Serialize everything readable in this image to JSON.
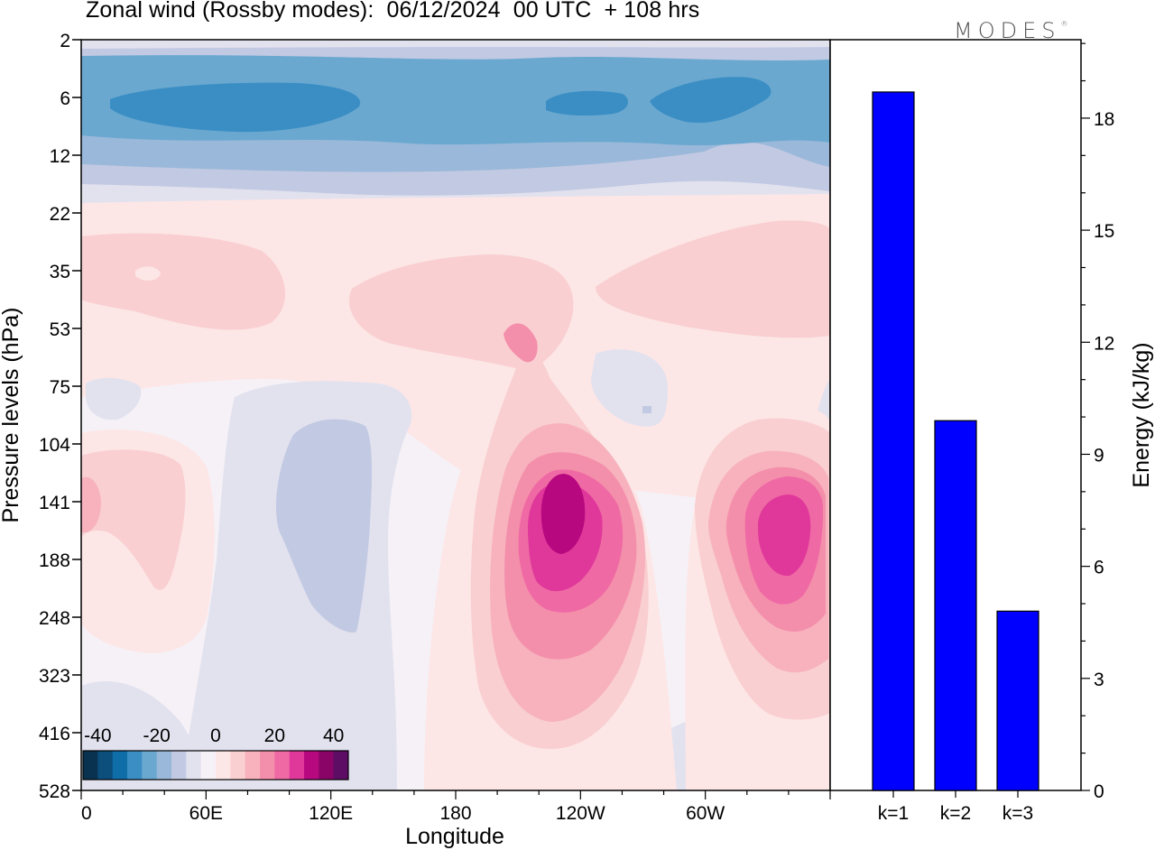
{
  "title": "Zonal wind (Rossby modes):  06/12/2024  00 UTC  + 108 hrs",
  "logo": "MODES",
  "logo_mark": "®",
  "colors": {
    "frame": "#000000",
    "bar_fill": "#0000ff",
    "palette": [
      "#08324f",
      "#0c4e7c",
      "#0f6ea8",
      "#3b8ec4",
      "#6aa8d0",
      "#9ab8d9",
      "#c2c9e2",
      "#e2e2ef",
      "#f6f1f6",
      "#ffffff",
      "#fde6e6",
      "#f9cfd1",
      "#f7b2bd",
      "#f48fab",
      "#ef6aa4",
      "#e0389a",
      "#b8087f",
      "#8a0468",
      "#5d0d63"
    ]
  },
  "chart_data": [
    {
      "type": "heatmap",
      "name": "zonal-wind-section",
      "xlabel": "Longitude",
      "ylabel": "Pressure levels (hPa)",
      "x_ticks": [
        "0",
        "60E",
        "120E",
        "180",
        "120W",
        "60W"
      ],
      "x_range_deg": [
        0,
        360
      ],
      "y_ticks": [
        "2",
        "6",
        "12",
        "22",
        "35",
        "53",
        "75",
        "104",
        "141",
        "188",
        "248",
        "323",
        "416",
        "528"
      ],
      "colorbar": {
        "tick_labels": [
          "-40",
          "-20",
          "0",
          "20",
          "40"
        ],
        "range": [
          -45,
          45
        ],
        "step": 5
      },
      "features": [
        {
          "type": "easterly-band",
          "level": "2-22 hPa",
          "core": "6 hPa",
          "min_value": -25
        },
        {
          "type": "westerly-core",
          "lon": "~115W",
          "level": "141 hPa",
          "max_value": 35
        },
        {
          "type": "westerly-core",
          "lon": "~35W",
          "level": "141-188 hPa",
          "max_value": 30
        },
        {
          "type": "easterly-region",
          "lon": "~60E-120E",
          "level": "104-248 hPa",
          "min_value": -10
        }
      ]
    },
    {
      "type": "bar",
      "name": "rossby-energy",
      "categories": [
        "k=1",
        "k=2",
        "k=3"
      ],
      "values": [
        18.7,
        9.9,
        4.8
      ],
      "ylabel": "Energy (kJ/kg)",
      "y_ticks": [
        "0",
        "3",
        "6",
        "9",
        "12",
        "15",
        "18"
      ],
      "ylim": [
        0,
        20.1
      ]
    }
  ]
}
